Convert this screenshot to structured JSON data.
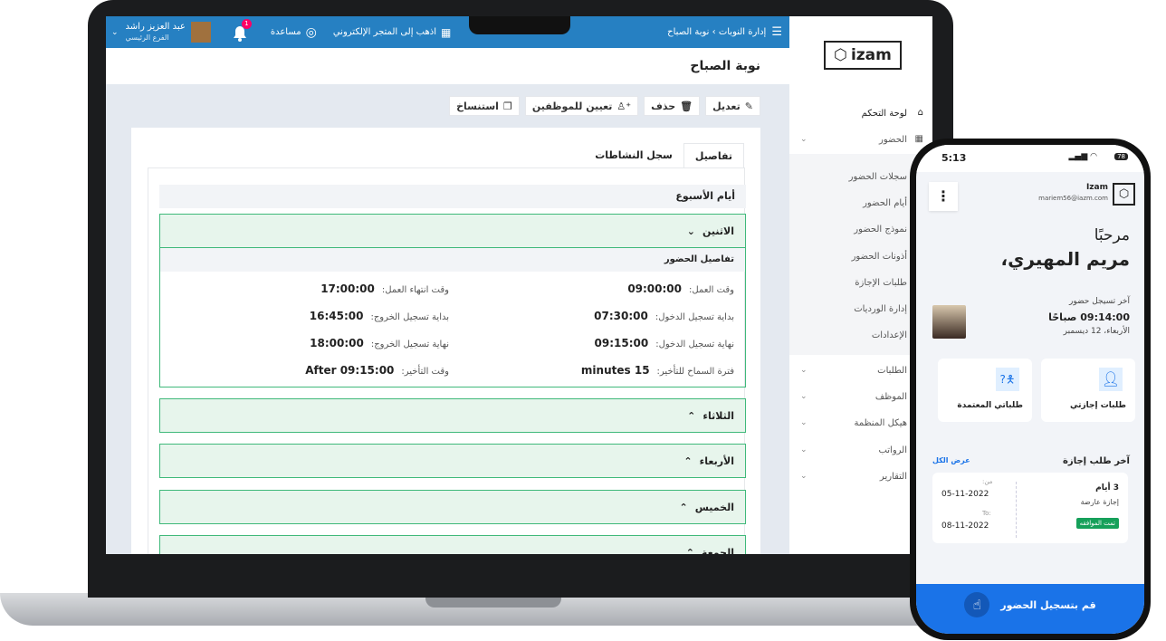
{
  "laptop": {
    "topbar": {
      "breadcrumb_parent": "إدارة النوبات",
      "breadcrumb_current": "نوبة الصباح",
      "store_link": "اذهب إلى المتجر الإلكتروني",
      "help": "مساعدة",
      "notification_count": "1",
      "user_name": "عبد العزيز راشد",
      "user_branch": "الفرع الرئيسي"
    },
    "page_title": "نوبة الصباح",
    "actions": {
      "edit": "تعديل",
      "delete": "حذف",
      "assign": "تعيين للموظفين",
      "copy": "استنساخ"
    },
    "tabs": [
      {
        "label": "تفاصيل",
        "active": true
      },
      {
        "label": "سجل النشاطات",
        "active": false
      }
    ],
    "section_title": "أيام الأسبوع",
    "days": [
      {
        "label": "الاثنين",
        "expanded": true
      },
      {
        "label": "الثلاثاء"
      },
      {
        "label": "الأربعاء"
      },
      {
        "label": "الخميس"
      },
      {
        "label": "الجمعة"
      }
    ],
    "details": {
      "title": "تفاصيل الحضور",
      "fields": [
        {
          "label": "وقت العمل:",
          "value": "09:00:00"
        },
        {
          "label": "وقت انتهاء العمل:",
          "value": "17:00:00"
        },
        {
          "label": "بداية تسجيل الدخول:",
          "value": "07:30:00"
        },
        {
          "label": "بداية تسجيل الخروج:",
          "value": "16:45:00"
        },
        {
          "label": "نهاية تسجيل الدخول:",
          "value": "09:15:00"
        },
        {
          "label": "نهاية تسجيل الخروج:",
          "value": "18:00:00"
        },
        {
          "label": "فترة السماح للتأخير:",
          "value": "15 minutes"
        },
        {
          "label": "وقت التأخير:",
          "value": "After 09:15:00"
        }
      ]
    },
    "sidebar": {
      "logo": "izam",
      "dashboard": "لوحة التحكم",
      "attendance": "الحضور",
      "sub_items": [
        "سجلات الحضور",
        "أيام الحضور",
        "نموذج الحضور",
        "أذونات الحضور",
        "طلبات الإجازة",
        "إدارة الورديات",
        "الإعدادات"
      ],
      "groups": [
        "الطلبات",
        "الموظف",
        "هيكل المنظمة",
        "الرواتب",
        "التقارير"
      ]
    }
  },
  "phone": {
    "time": "5:13",
    "battery": "78",
    "account_name": "Izam",
    "account_email": "mariem56@iazm.com",
    "greeting": "مرحبًا",
    "user_name": "مريم المهيري،",
    "last_checkin_label": "آخر تسيجل حضور",
    "last_checkin_time": "09:14:00 صباحًا",
    "last_checkin_date": "الأربعاء، 12 ديسمبر",
    "tiles": [
      {
        "label": "طلبات إجازتي",
        "icon": "user-icon"
      },
      {
        "label": "طلباتي المعتمدة",
        "icon": "person-question-icon"
      }
    ],
    "leave_section": {
      "title": "آخر طلب إجازة",
      "view_all": "عرض الكل",
      "duration": "3 أيام",
      "type": "إجازة عارضة",
      "status": "تمت الموافقه",
      "from_label": "من:",
      "from": "05-11-2022",
      "to_label": "To:",
      "to": "08-11-2022"
    },
    "checkin_button": "قم بتسجيل الحضور"
  },
  "colors": {
    "topbar": "#2680c2",
    "accent_green": "#3fb97a",
    "phone_button": "#1a73e8",
    "status_green": "#16a05a"
  }
}
